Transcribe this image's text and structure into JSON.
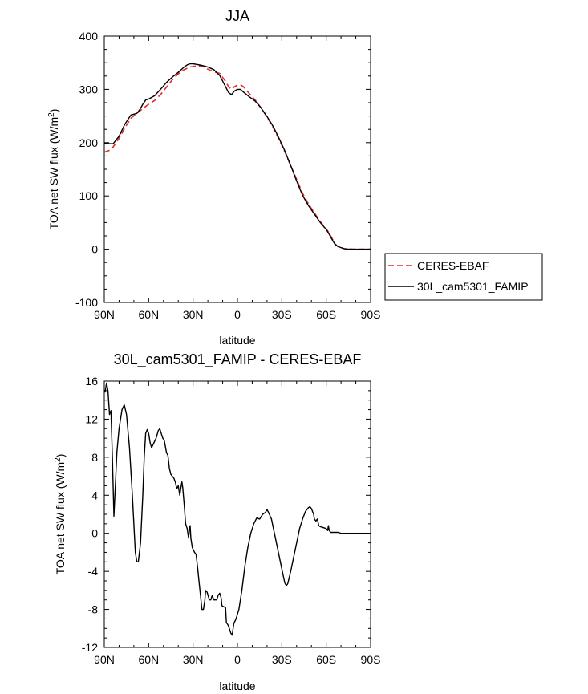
{
  "chart_data": [
    {
      "type": "line",
      "title": "JJA",
      "xlabel": "latitude",
      "ylabel_main": "TOA net SW flux (W/m",
      "ylabel_sup": "2",
      "ylabel_end": ")",
      "xlim": [
        90,
        -90
      ],
      "ylim": [
        -100,
        400
      ],
      "xticks": [
        {
          "value": 90,
          "label": "90N"
        },
        {
          "value": 60,
          "label": "60N"
        },
        {
          "value": 30,
          "label": "30N"
        },
        {
          "value": 0,
          "label": "0"
        },
        {
          "value": -30,
          "label": "30S"
        },
        {
          "value": -60,
          "label": "60S"
        },
        {
          "value": -90,
          "label": "90S"
        }
      ],
      "yticks": [
        {
          "value": 400,
          "label": "400"
        },
        {
          "value": 300,
          "label": "300"
        },
        {
          "value": 200,
          "label": "200"
        },
        {
          "value": 100,
          "label": "100"
        },
        {
          "value": 0,
          "label": "0"
        },
        {
          "value": -100,
          "label": "-100"
        }
      ],
      "legend": {
        "placement": "right",
        "entries": [
          {
            "label": "CERES-EBAF",
            "color": "#e8282c",
            "dash": true
          },
          {
            "label": "30L_cam5301_FAMIP",
            "color": "#000000",
            "dash": false
          }
        ]
      },
      "series": [
        {
          "name": "CERES-EBAF",
          "color": "#e8282c",
          "dash": true,
          "points": [
            [
              90,
              182
            ],
            [
              86,
              186
            ],
            [
              84,
              192
            ],
            [
              80,
              208
            ],
            [
              76,
              228
            ],
            [
              72,
              246
            ],
            [
              68,
              255
            ],
            [
              64,
              264
            ],
            [
              60,
              272
            ],
            [
              56,
              279
            ],
            [
              52,
              290
            ],
            [
              48,
              304
            ],
            [
              44,
              318
            ],
            [
              40,
              329
            ],
            [
              36,
              337
            ],
            [
              32,
              342
            ],
            [
              28,
              344
            ],
            [
              24,
              344
            ],
            [
              20,
              338
            ],
            [
              16,
              333
            ],
            [
              12,
              330
            ],
            [
              8,
              315
            ],
            [
              6,
              305
            ],
            [
              4,
              300
            ],
            [
              2,
              305
            ],
            [
              0,
              308
            ],
            [
              -2,
              309
            ],
            [
              -4,
              305
            ],
            [
              -8,
              292
            ],
            [
              -12,
              280
            ],
            [
              -16,
              265
            ],
            [
              -20,
              248
            ],
            [
              -24,
              229
            ],
            [
              -28,
              207
            ],
            [
              -32,
              183
            ],
            [
              -36,
              157
            ],
            [
              -40,
              131
            ],
            [
              -44,
              105
            ],
            [
              -48,
              85
            ],
            [
              -52,
              68
            ],
            [
              -56,
              52
            ],
            [
              -60,
              38
            ],
            [
              -62,
              30
            ],
            [
              -64,
              20
            ],
            [
              -66,
              10
            ],
            [
              -68,
              5
            ],
            [
              -70,
              3
            ],
            [
              -72,
              1
            ],
            [
              -74,
              0.5
            ],
            [
              -78,
              0
            ],
            [
              -90,
              0
            ]
          ]
        },
        {
          "name": "30L_cam5301_FAMIP",
          "color": "#000000",
          "dash": false,
          "points": [
            [
              90,
              199
            ],
            [
              86,
              198
            ],
            [
              84,
              198
            ],
            [
              80,
              212
            ],
            [
              76,
              235
            ],
            [
              72,
              252
            ],
            [
              68,
              255
            ],
            [
              66,
              262
            ],
            [
              64,
              272
            ],
            [
              62,
              280
            ],
            [
              60,
              282
            ],
            [
              56,
              288
            ],
            [
              52,
              300
            ],
            [
              48,
              313
            ],
            [
              44,
              323
            ],
            [
              40,
              332
            ],
            [
              36,
              342
            ],
            [
              34,
              346
            ],
            [
              32,
              348
            ],
            [
              30,
              348
            ],
            [
              28,
              347
            ],
            [
              24,
              345
            ],
            [
              20,
              342
            ],
            [
              16,
              337
            ],
            [
              12,
              326
            ],
            [
              8,
              305
            ],
            [
              6,
              294
            ],
            [
              4,
              290
            ],
            [
              2,
              297
            ],
            [
              0,
              300
            ],
            [
              -2,
              300
            ],
            [
              -4,
              295
            ],
            [
              -8,
              286
            ],
            [
              -12,
              278
            ],
            [
              -16,
              265
            ],
            [
              -20,
              249
            ],
            [
              -24,
              231
            ],
            [
              -28,
              209
            ],
            [
              -32,
              185
            ],
            [
              -36,
              157
            ],
            [
              -40,
              128
            ],
            [
              -44,
              101
            ],
            [
              -48,
              82
            ],
            [
              -52,
              66
            ],
            [
              -56,
              50
            ],
            [
              -60,
              37
            ],
            [
              -62,
              28
            ],
            [
              -64,
              18
            ],
            [
              -66,
              9
            ],
            [
              -68,
              5
            ],
            [
              -70,
              3
            ],
            [
              -72,
              1
            ],
            [
              -74,
              0.5
            ],
            [
              -78,
              0
            ],
            [
              -90,
              0
            ]
          ]
        }
      ]
    },
    {
      "type": "line",
      "title": "30L_cam5301_FAMIP - CERES-EBAF",
      "xlabel": "latitude",
      "ylabel_main": "TOA net SW flux (W/m",
      "ylabel_sup": "2",
      "ylabel_end": ")",
      "xlim": [
        90,
        -90
      ],
      "ylim": [
        -12,
        16
      ],
      "xticks": [
        {
          "value": 90,
          "label": "90N"
        },
        {
          "value": 60,
          "label": "60N"
        },
        {
          "value": 30,
          "label": "30N"
        },
        {
          "value": 0,
          "label": "0"
        },
        {
          "value": -30,
          "label": "30S"
        },
        {
          "value": -60,
          "label": "60S"
        },
        {
          "value": -90,
          "label": "90S"
        }
      ],
      "yticks": [
        {
          "value": 16,
          "label": "16"
        },
        {
          "value": 12,
          "label": "12"
        },
        {
          "value": 8,
          "label": "8"
        },
        {
          "value": 4,
          "label": "4"
        },
        {
          "value": 0,
          "label": "0"
        },
        {
          "value": -4,
          "label": "-4"
        },
        {
          "value": -8,
          "label": "-8"
        },
        {
          "value": -12,
          "label": "-12"
        }
      ],
      "series": [
        {
          "name": "30L_cam5301_FAMIP - CERES-EBAF",
          "color": "#000000",
          "dash": false,
          "points": [
            [
              89.5,
              14.8
            ],
            [
              88.5,
              15.8
            ],
            [
              87.5,
              15
            ],
            [
              86.5,
              12.5
            ],
            [
              85.5,
              12.9
            ],
            [
              84.5,
              8
            ],
            [
              83.5,
              1.8
            ],
            [
              82.5,
              5
            ],
            [
              81.5,
              8.5
            ],
            [
              80,
              11
            ],
            [
              78,
              13
            ],
            [
              76.5,
              13.5
            ],
            [
              75,
              12.5
            ],
            [
              73,
              9
            ],
            [
              71,
              4
            ],
            [
              69,
              -2
            ],
            [
              68,
              -3
            ],
            [
              67,
              -3
            ],
            [
              65.5,
              -1
            ],
            [
              64,
              4
            ],
            [
              63,
              8
            ],
            [
              62,
              10.5
            ],
            [
              61,
              10.9
            ],
            [
              60,
              10.5
            ],
            [
              59,
              9.5
            ],
            [
              58,
              9
            ],
            [
              56.5,
              9.5
            ],
            [
              55,
              10
            ],
            [
              53.5,
              10.8
            ],
            [
              52.5,
              11
            ],
            [
              51.5,
              10.5
            ],
            [
              50.5,
              10
            ],
            [
              49.5,
              9.8
            ],
            [
              48,
              8.5
            ],
            [
              47,
              8.2
            ],
            [
              46,
              6.8
            ],
            [
              45,
              6.2
            ],
            [
              44,
              6
            ],
            [
              43,
              5.8
            ],
            [
              42,
              5.4
            ],
            [
              41,
              4.7
            ],
            [
              40,
              5
            ],
            [
              39,
              4
            ],
            [
              38,
              5
            ],
            [
              37.5,
              5.4
            ],
            [
              37,
              4.8
            ],
            [
              36,
              3
            ],
            [
              35,
              1
            ],
            [
              34,
              0.5
            ],
            [
              33,
              -0.5
            ],
            [
              32.5,
              0.5
            ],
            [
              32,
              0.8
            ],
            [
              31.5,
              -0.5
            ],
            [
              30.5,
              -1.5
            ],
            [
              29,
              -2
            ],
            [
              28,
              -2.2
            ],
            [
              27,
              -3.5
            ],
            [
              26,
              -5
            ],
            [
              25,
              -6.5
            ],
            [
              24,
              -8
            ],
            [
              23,
              -8
            ],
            [
              22,
              -7
            ],
            [
              21.5,
              -6
            ],
            [
              20.5,
              -6.2
            ],
            [
              19,
              -7
            ],
            [
              18,
              -7
            ],
            [
              17,
              -6.5
            ],
            [
              16,
              -7
            ],
            [
              15,
              -7
            ],
            [
              14,
              -7
            ],
            [
              13,
              -6.5
            ],
            [
              12,
              -6.3
            ],
            [
              11,
              -6.8
            ],
            [
              10.5,
              -7.6
            ],
            [
              9.5,
              -7.7
            ],
            [
              8,
              -7.8
            ],
            [
              7.5,
              -9.4
            ],
            [
              6.5,
              -9.6
            ],
            [
              5.5,
              -10
            ],
            [
              4.5,
              -10.5
            ],
            [
              3.5,
              -10.7
            ],
            [
              2.5,
              -9.5
            ],
            [
              1,
              -9
            ],
            [
              -1,
              -8
            ],
            [
              -3,
              -6
            ],
            [
              -5,
              -3.5
            ],
            [
              -7,
              -1.5
            ],
            [
              -9,
              0
            ],
            [
              -11,
              1
            ],
            [
              -13,
              1.6
            ],
            [
              -15,
              1.5
            ],
            [
              -17,
              2
            ],
            [
              -19,
              2.2
            ],
            [
              -20,
              2.5
            ],
            [
              -21,
              2.2
            ],
            [
              -23,
              1.5
            ],
            [
              -25,
              0
            ],
            [
              -27,
              -1.5
            ],
            [
              -29,
              -3
            ],
            [
              -31,
              -4.5
            ],
            [
              -32,
              -5.2
            ],
            [
              -33,
              -5.5
            ],
            [
              -34,
              -5.3
            ],
            [
              -36,
              -4
            ],
            [
              -38,
              -2.5
            ],
            [
              -40,
              -1
            ],
            [
              -42,
              0.5
            ],
            [
              -44,
              1.5
            ],
            [
              -46,
              2.3
            ],
            [
              -48,
              2.7
            ],
            [
              -49,
              2.8
            ],
            [
              -50,
              2.6
            ],
            [
              -51.5,
              2
            ],
            [
              -52,
              1.5
            ],
            [
              -53,
              1.3
            ],
            [
              -54,
              1.5
            ],
            [
              -55,
              0.8
            ],
            [
              -56,
              0.7
            ],
            [
              -58,
              0.6
            ],
            [
              -60,
              0.5
            ],
            [
              -61,
              0.3
            ],
            [
              -61.5,
              0.8
            ],
            [
              -62,
              0.3
            ],
            [
              -63,
              0.1
            ],
            [
              -65,
              0.1
            ],
            [
              -68,
              0.1
            ],
            [
              -70,
              0
            ],
            [
              -90,
              0
            ]
          ]
        }
      ]
    }
  ]
}
